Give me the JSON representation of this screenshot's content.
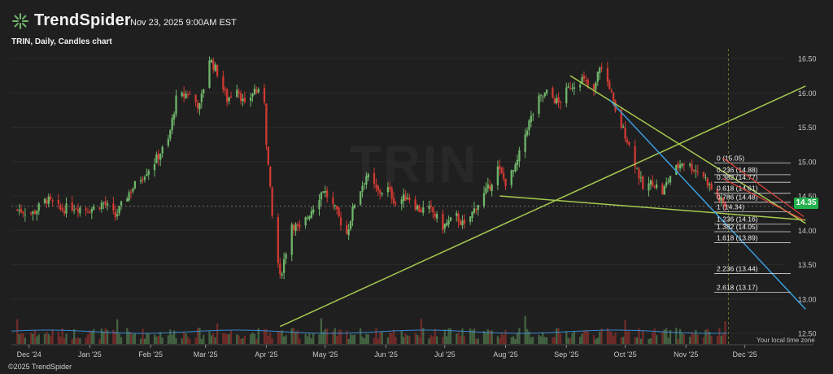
{
  "header": {
    "brand": "TrendSpider",
    "date": "Nov 23, 2025 9:00AM EST",
    "chart_title": "TRIN, Daily, Candles chart"
  },
  "watermark": {
    "symbol": "TRIN"
  },
  "footer": {
    "copyright": "©2025 TrendSpider",
    "local_time": "Your local time zone"
  },
  "colors": {
    "up": "#6fb56b",
    "down": "#d03a33",
    "trend_green": "#a6c94f",
    "trend_blue": "#39a0e0",
    "fib_red": "#e0443c",
    "badge": "#22b14c"
  },
  "chart_data": {
    "type": "candlestick",
    "symbol": "TRIN",
    "interval": "Daily",
    "last_price": "14.35",
    "y_axis": {
      "ticks": [
        "16.50",
        "16.00",
        "15.50",
        "15.00",
        "14.50",
        "14.00",
        "13.50",
        "13.00",
        "12.50"
      ],
      "range": [
        12.3,
        16.9
      ]
    },
    "x_axis": {
      "ticks": [
        "Dec '24",
        "Jan '25",
        "Feb '25",
        "Mar '25",
        "Apr '25",
        "May '25",
        "Jun '25",
        "Jul '25",
        "Aug '25",
        "Sep '25",
        "Oct '25",
        "Nov '25",
        "Dec '25"
      ]
    },
    "fib_levels": [
      {
        "label": "0 (15.05)",
        "price": 15.05
      },
      {
        "label": "0.236 (14.88)",
        "price": 14.88
      },
      {
        "label": "0.382 (14.77)",
        "price": 14.77
      },
      {
        "label": "0.618 (14.61)",
        "price": 14.61
      },
      {
        "label": "0.786 (14.48)",
        "price": 14.48
      },
      {
        "label": "1 (14.34)",
        "price": 14.34
      },
      {
        "label": "1.236 (14.16)",
        "price": 14.16
      },
      {
        "label": "1.382 (14.05)",
        "price": 14.05
      },
      {
        "label": "1.618 (13.89)",
        "price": 13.89
      },
      {
        "label": "2.236 (13.44)",
        "price": 13.44
      },
      {
        "label": "2.618 (13.17)",
        "price": 13.17
      }
    ],
    "close_path": [
      [
        "2024-11-25",
        14.3
      ],
      [
        "2024-12-03",
        14.25
      ],
      [
        "2024-12-10",
        14.45
      ],
      [
        "2024-12-17",
        14.3
      ],
      [
        "2024-12-24",
        14.35
      ],
      [
        "2025-01-01",
        14.3
      ],
      [
        "2025-01-08",
        14.4
      ],
      [
        "2025-01-14",
        14.2
      ],
      [
        "2025-01-21",
        14.55
      ],
      [
        "2025-01-28",
        14.8
      ],
      [
        "2025-02-03",
        15.0
      ],
      [
        "2025-02-10",
        15.3
      ],
      [
        "2025-02-14",
        15.9
      ],
      [
        "2025-02-20",
        16.0
      ],
      [
        "2025-02-26",
        15.8
      ],
      [
        "2025-03-03",
        16.5
      ],
      [
        "2025-03-07",
        16.3
      ],
      [
        "2025-03-12",
        15.9
      ],
      [
        "2025-03-17",
        16.1
      ],
      [
        "2025-03-21",
        15.8
      ],
      [
        "2025-03-26",
        16.05
      ],
      [
        "2025-03-31",
        15.9
      ],
      [
        "2025-04-01",
        15.3
      ],
      [
        "2025-04-04",
        14.2
      ],
      [
        "2025-04-08",
        13.3
      ],
      [
        "2025-04-14",
        14.1
      ],
      [
        "2025-04-18",
        14.0
      ],
      [
        "2025-04-24",
        14.3
      ],
      [
        "2025-04-30",
        14.6
      ],
      [
        "2025-05-06",
        14.3
      ],
      [
        "2025-05-12",
        13.95
      ],
      [
        "2025-05-16",
        14.4
      ],
      [
        "2025-05-22",
        14.8
      ],
      [
        "2025-05-28",
        14.55
      ],
      [
        "2025-06-02",
        14.6
      ],
      [
        "2025-06-06",
        14.4
      ],
      [
        "2025-06-12",
        14.5
      ],
      [
        "2025-06-18",
        14.3
      ],
      [
        "2025-06-24",
        14.3
      ],
      [
        "2025-06-30",
        14.05
      ],
      [
        "2025-07-07",
        14.2
      ],
      [
        "2025-07-11",
        14.05
      ],
      [
        "2025-07-17",
        14.35
      ],
      [
        "2025-07-23",
        14.6
      ],
      [
        "2025-07-28",
        14.9
      ],
      [
        "2025-08-01",
        14.7
      ],
      [
        "2025-08-06",
        14.9
      ],
      [
        "2025-08-12",
        15.5
      ],
      [
        "2025-08-18",
        15.9
      ],
      [
        "2025-08-22",
        16.0
      ],
      [
        "2025-08-28",
        15.85
      ],
      [
        "2025-09-03",
        16.1
      ],
      [
        "2025-09-09",
        16.2
      ],
      [
        "2025-09-15",
        16.0
      ],
      [
        "2025-09-18",
        16.4
      ],
      [
        "2025-09-23",
        16.1
      ],
      [
        "2025-09-26",
        15.7
      ],
      [
        "2025-10-01",
        15.4
      ],
      [
        "2025-10-07",
        14.9
      ],
      [
        "2025-10-10",
        14.6
      ],
      [
        "2025-10-15",
        14.7
      ],
      [
        "2025-10-20",
        14.55
      ],
      [
        "2025-10-24",
        14.8
      ],
      [
        "2025-10-30",
        15.0
      ],
      [
        "2025-11-05",
        14.9
      ],
      [
        "2025-11-10",
        14.8
      ],
      [
        "2025-11-14",
        14.6
      ],
      [
        "2025-11-18",
        14.45
      ],
      [
        "2025-11-21",
        14.35
      ]
    ],
    "trendlines": [
      {
        "color": "green",
        "from": [
          "2025-04-08",
          12.6
        ],
        "to": [
          "2026-01-01",
          16.1
        ]
      },
      {
        "color": "green",
        "from": [
          "2025-09-03",
          16.25
        ],
        "to": [
          "2026-01-01",
          14.1
        ]
      },
      {
        "color": "green",
        "from": [
          "2025-07-29",
          14.5
        ],
        "to": [
          "2026-01-01",
          14.15
        ]
      },
      {
        "color": "blue",
        "from": [
          "2025-09-23",
          15.9
        ],
        "to": [
          "2026-01-01",
          12.85
        ]
      }
    ]
  }
}
